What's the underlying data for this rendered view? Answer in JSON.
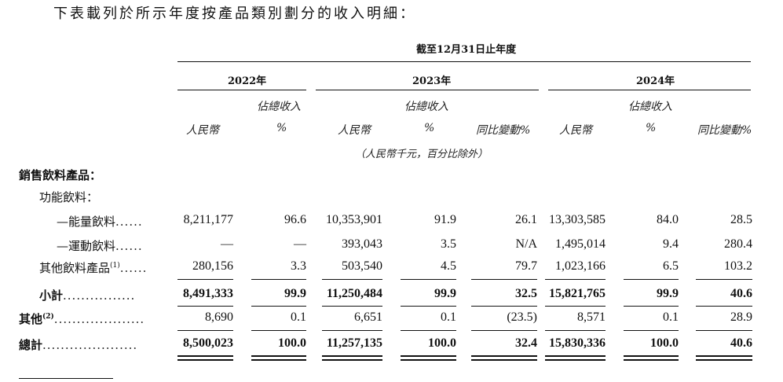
{
  "intro": "下表載列於所示年度按產品類別劃分的收入明細：",
  "header": {
    "period": "截至12月31日止年度",
    "years": [
      "2022年",
      "2023年",
      "2024年"
    ],
    "pct_total_label": "佔總收入",
    "rmb_label": "人民幣",
    "pct_label": "%",
    "yoy_label": "同比變動%",
    "unit_note": "（人民幣千元，百分比除外）"
  },
  "section_title": "銷售飲料產品：",
  "group_title": "功能飲料：",
  "rows": [
    {
      "label": "—能量飲料",
      "dots": "......",
      "vals": [
        "8,211,177",
        "96.6",
        "10,353,901",
        "91.9",
        "26.1",
        "13,303,585",
        "84.0",
        "28.5"
      ]
    },
    {
      "label": "—運動飲料",
      "dots": "......",
      "vals": [
        "—",
        "—",
        "393,043",
        "3.5",
        "N/A",
        "1,495,014",
        "9.4",
        "280.4"
      ]
    },
    {
      "label": "其他飲料產品",
      "sup": "(1)",
      "dots": "......",
      "vals": [
        "280,156",
        "3.3",
        "503,540",
        "4.5",
        "79.7",
        "1,023,166",
        "6.5",
        "103.2"
      ]
    },
    {
      "label": "小計",
      "dots": "................",
      "bold": true,
      "vals": [
        "8,491,333",
        "99.9",
        "11,250,484",
        "99.9",
        "32.5",
        "15,821,765",
        "99.9",
        "40.6"
      ]
    },
    {
      "label": "其他",
      "sup": "(2)",
      "dots": "....................",
      "bold": true,
      "vals": [
        "8,690",
        "0.1",
        "6,651",
        "0.1",
        "(23.5)",
        "8,571",
        "0.1",
        "28.9"
      ]
    },
    {
      "label": "總計",
      "dots": ".....................",
      "bold": true,
      "vals": [
        "8,500,023",
        "100.0",
        "11,257,135",
        "100.0",
        "32.4",
        "15,830,336",
        "100.0",
        "40.6"
      ]
    }
  ]
}
